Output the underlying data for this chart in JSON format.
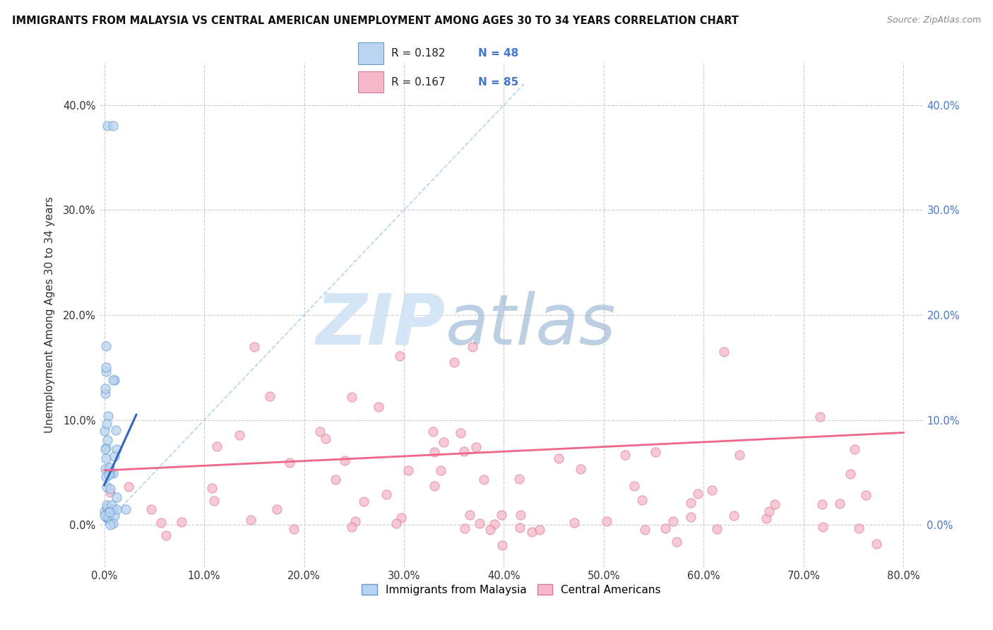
{
  "title": "IMMIGRANTS FROM MALAYSIA VS CENTRAL AMERICAN UNEMPLOYMENT AMONG AGES 30 TO 34 YEARS CORRELATION CHART",
  "source": "Source: ZipAtlas.com",
  "ylabel": "Unemployment Among Ages 30 to 34 years",
  "xlim": [
    -0.005,
    0.82
  ],
  "ylim": [
    -0.04,
    0.44
  ],
  "yticks": [
    0.0,
    0.1,
    0.2,
    0.3,
    0.4
  ],
  "xticks": [
    0.0,
    0.1,
    0.2,
    0.3,
    0.4,
    0.5,
    0.6,
    0.7,
    0.8
  ],
  "ytick_labels": [
    "0.0%",
    "10.0%",
    "20.0%",
    "30.0%",
    "40.0%"
  ],
  "xtick_labels": [
    "0.0%",
    "10.0%",
    "20.0%",
    "30.0%",
    "40.0%",
    "50.0%",
    "60.0%",
    "70.0%",
    "80.0%"
  ],
  "legend_r1": "R = 0.182",
  "legend_n1": "N = 48",
  "legend_r2": "R = 0.167",
  "legend_n2": "N = 85",
  "color_blue_fill": "#b8d4f0",
  "color_blue_edge": "#6699cc",
  "color_pink_fill": "#f5b8c8",
  "color_pink_edge": "#dd7799",
  "color_blue_line": "#3366bb",
  "color_pink_line": "#ee6688",
  "color_diag": "#aaccee",
  "color_grid": "#cccccc",
  "color_right_tick": "#4477cc",
  "background": "#ffffff",
  "watermark_zip": "ZIP",
  "watermark_atlas": "atlas",
  "legend_label_blue": "Immigrants from Malaysia",
  "legend_label_pink": "Central Americans"
}
